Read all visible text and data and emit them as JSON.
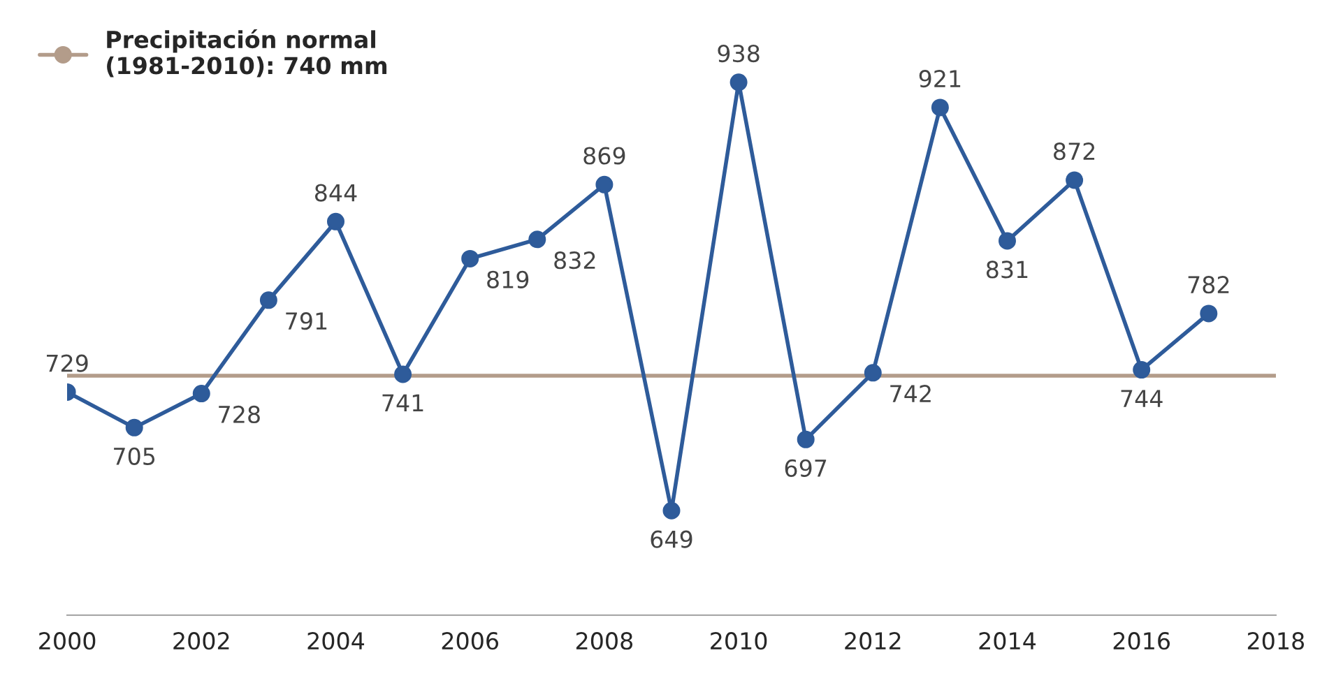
{
  "chart_data": {
    "type": "line",
    "x": [
      2000,
      2001,
      2002,
      2003,
      2004,
      2005,
      2006,
      2007,
      2008,
      2009,
      2010,
      2011,
      2012,
      2013,
      2014,
      2015,
      2016,
      2017
    ],
    "series": [
      {
        "color": "#2e5b9a",
        "values": [
          729,
          705,
          728,
          791,
          844,
          741,
          819,
          832,
          869,
          649,
          938,
          697,
          742,
          921,
          831,
          872,
          744,
          782
        ]
      }
    ],
    "data_labels": true,
    "xlim": [
      2000,
      2018
    ],
    "xticks": [
      2000,
      2002,
      2004,
      2006,
      2008,
      2010,
      2012,
      2014,
      2016,
      2018
    ],
    "ref_lines": [
      {
        "axis": "y",
        "value": 740,
        "label": "Precipitación normal\n(1981-2010): 740 mm",
        "color": "#b39c8a"
      }
    ],
    "legend": "top left",
    "marker": "circle",
    "line_style": "solid",
    "grid": false
  }
}
